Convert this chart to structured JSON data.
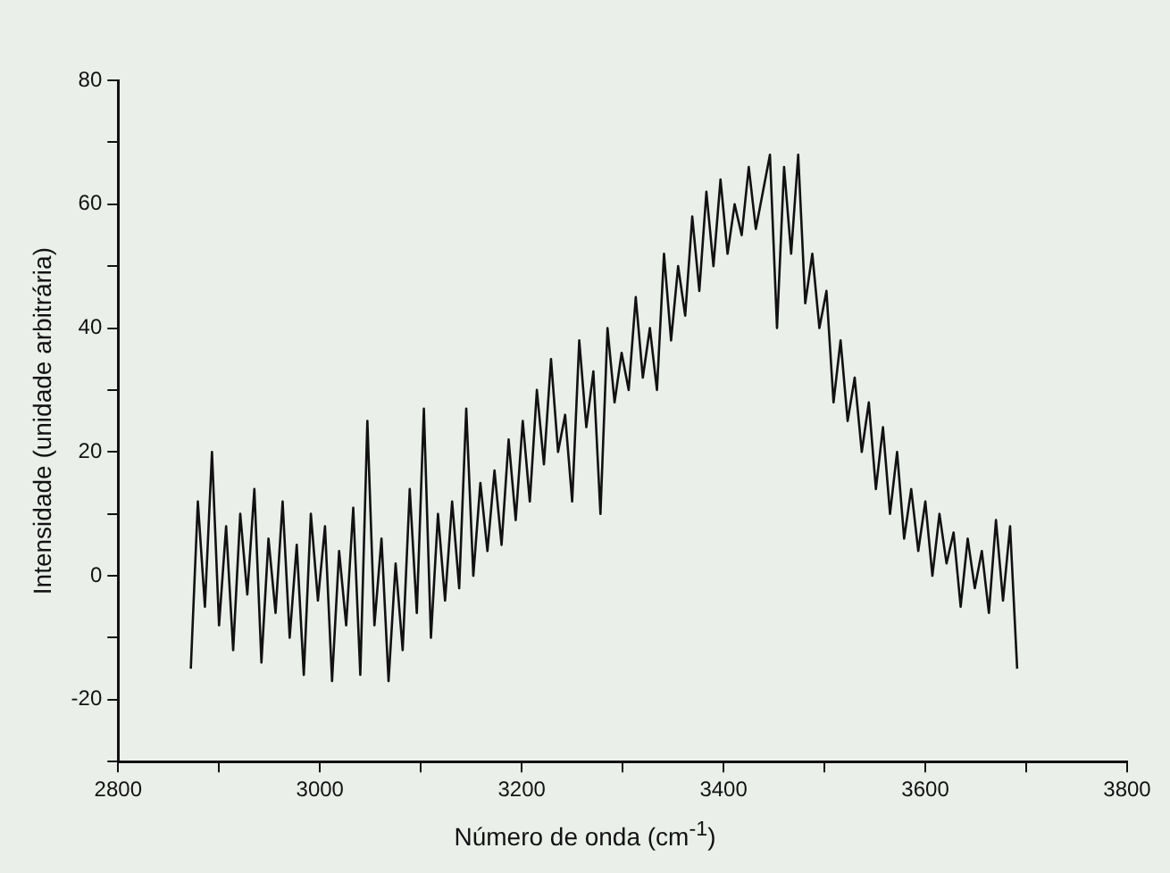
{
  "chart_data": {
    "type": "line",
    "xlabel": "Número de onda (cm$^{-1}$)",
    "ylabel": "Intensidade (unidade arbitrária)",
    "xlim": [
      2800,
      3800
    ],
    "xticks": [
      2800,
      {
        "value": 2900,
        "label": null
      },
      3000,
      {
        "value": 3100,
        "label": null
      },
      3200,
      {
        "value": 3300,
        "label": null
      },
      3400,
      {
        "value": 3500,
        "label": null
      },
      3600,
      {
        "value": 3700,
        "label": null
      },
      3800
    ],
    "ylim": [
      -30,
      80
    ],
    "yticks": [
      {
        "value": -30,
        "label": null
      },
      -20,
      {
        "value": -10,
        "label": null
      },
      0,
      {
        "value": 10,
        "label": null
      },
      20,
      {
        "value": 30,
        "label": null
      },
      40,
      {
        "value": 50,
        "label": null
      },
      60,
      {
        "value": 70,
        "label": null
      },
      80
    ],
    "grid": false,
    "legend": false,
    "marker": "none",
    "line_style": "solid",
    "series": [
      {
        "color": "#111111",
        "x": [
          2872,
          2879,
          2886,
          2893,
          2900,
          2907,
          2914,
          2921,
          2928,
          2935,
          2942,
          2949,
          2956,
          2963,
          2970,
          2977,
          2984,
          2991,
          2998,
          3005,
          3012,
          3019,
          3026,
          3033,
          3040,
          3047,
          3054,
          3061,
          3068,
          3075,
          3082,
          3089,
          3096,
          3103,
          3110,
          3117,
          3124,
          3131,
          3138,
          3145,
          3152,
          3159,
          3166,
          3173,
          3180,
          3187,
          3194,
          3201,
          3208,
          3215,
          3222,
          3229,
          3236,
          3243,
          3250,
          3257,
          3264,
          3271,
          3278,
          3285,
          3292,
          3299,
          3306,
          3313,
          3320,
          3327,
          3334,
          3341,
          3348,
          3355,
          3362,
          3369,
          3376,
          3383,
          3390,
          3397,
          3404,
          3411,
          3418,
          3425,
          3432,
          3439,
          3446,
          3453,
          3460,
          3467,
          3474,
          3481,
          3488,
          3495,
          3502,
          3509,
          3516,
          3523,
          3530,
          3537,
          3544,
          3551,
          3558,
          3565,
          3572,
          3579,
          3586,
          3593,
          3600,
          3607,
          3614,
          3621,
          3628,
          3635,
          3642,
          3649,
          3656,
          3663,
          3670,
          3677,
          3684,
          3691
        ],
        "values": [
          -15,
          12,
          -5,
          20,
          -8,
          8,
          -12,
          10,
          -3,
          14,
          -14,
          6,
          -6,
          12,
          -10,
          5,
          -16,
          10,
          -4,
          8,
          -17,
          4,
          -8,
          11,
          -16,
          25,
          -8,
          6,
          -17,
          2,
          -12,
          14,
          -6,
          27,
          -10,
          10,
          -4,
          12,
          -2,
          27,
          0,
          15,
          4,
          17,
          5,
          22,
          9,
          25,
          12,
          30,
          18,
          35,
          20,
          26,
          12,
          38,
          24,
          33,
          10,
          40,
          28,
          36,
          30,
          45,
          32,
          40,
          30,
          52,
          38,
          50,
          42,
          58,
          46,
          62,
          50,
          64,
          52,
          60,
          55,
          66,
          56,
          62,
          68,
          40,
          66,
          52,
          68,
          44,
          52,
          40,
          46,
          28,
          38,
          25,
          32,
          20,
          28,
          14,
          24,
          10,
          20,
          6,
          14,
          4,
          12,
          0,
          10,
          2,
          7,
          -5,
          6,
          -2,
          4,
          -6,
          9,
          -4,
          8,
          -15
        ]
      }
    ]
  }
}
